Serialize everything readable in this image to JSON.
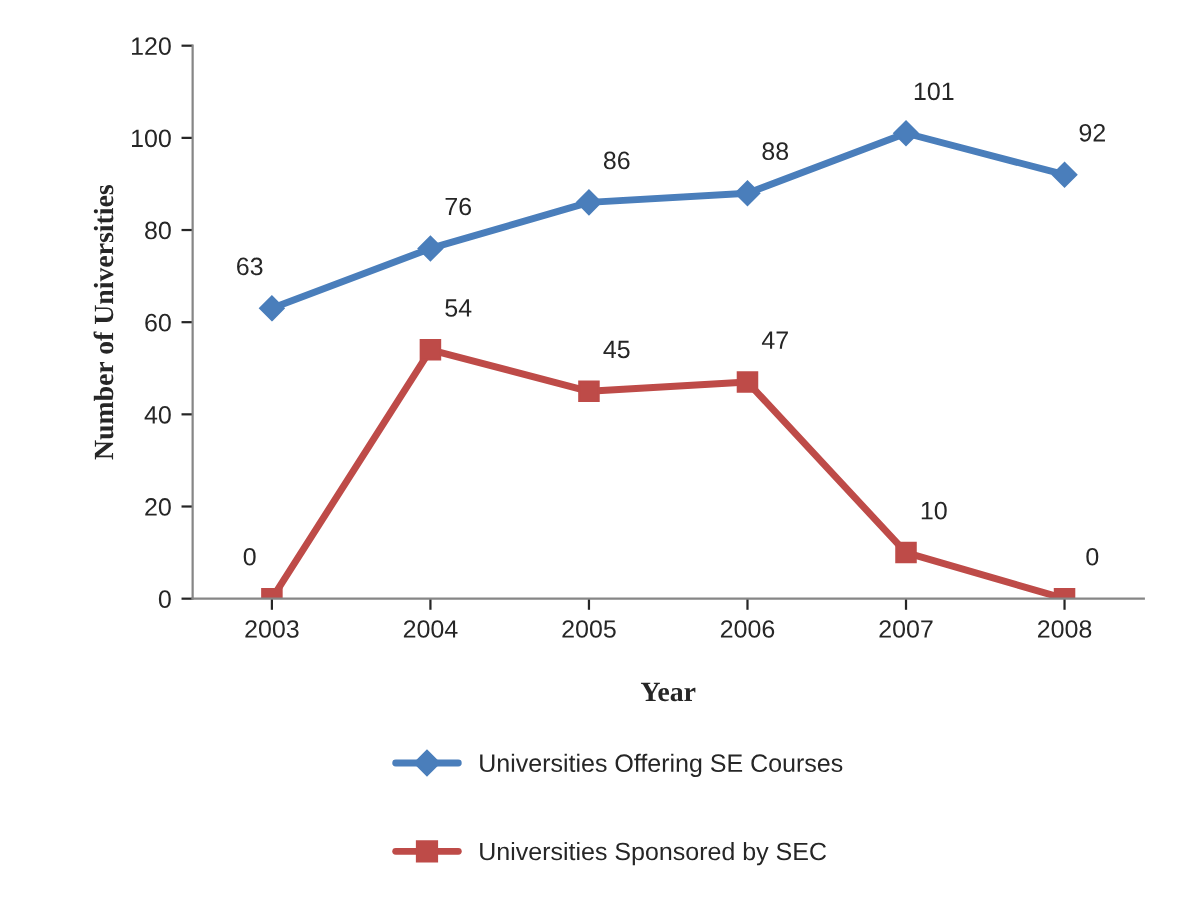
{
  "chart_data": {
    "type": "line",
    "xlabel": "Year",
    "ylabel": "Number of Universities",
    "categories": [
      "2003",
      "2004",
      "2005",
      "2006",
      "2007",
      "2008"
    ],
    "series": [
      {
        "name": "Universities Offering SE Courses",
        "color": "#4a7ebb",
        "marker": "diamond",
        "values": [
          63,
          76,
          86,
          88,
          101,
          92
        ]
      },
      {
        "name": "Universities Sponsored by SEC",
        "color": "#be4b48",
        "marker": "square",
        "values": [
          0,
          54,
          45,
          47,
          10,
          0
        ]
      }
    ],
    "ylim": [
      0,
      120
    ],
    "yticks": [
      0,
      20,
      40,
      60,
      80,
      100,
      120
    ],
    "grid": false,
    "legend": "bottom",
    "data_labels": true
  }
}
